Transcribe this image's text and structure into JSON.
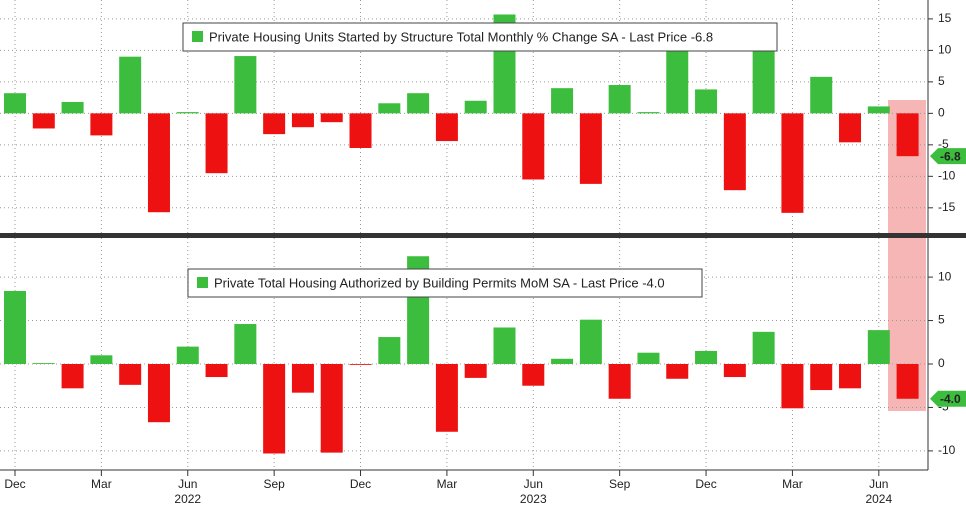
{
  "chart_data": [
    {
      "type": "bar",
      "title": "Private Housing Units Started by Structure Total Monthly % Change SA - Last Price -6.8",
      "values": [
        3.2,
        -2.4,
        1.8,
        -3.5,
        9.0,
        -15.7,
        0.2,
        -9.5,
        9.1,
        -3.3,
        -2.2,
        -1.4,
        -5.5,
        1.6,
        3.2,
        -4.4,
        2.0,
        15.7,
        -10.5,
        4.0,
        -11.2,
        4.5,
        0.2,
        10.0,
        3.8,
        -12.2,
        12.3,
        -15.8,
        5.8,
        -4.6,
        1.1,
        -6.8
      ],
      "last_label": "-6.8",
      "positive_color": "#3dbd3d",
      "negative_color": "#ee1111",
      "ylim": [
        -19,
        18
      ],
      "yticks": [
        15,
        10,
        5,
        0,
        -5,
        -10,
        -15
      ],
      "grid": true
    },
    {
      "type": "bar",
      "title": "Private Total Housing Authorized by Building Permits MoM SA - Last Price -4.0",
      "categories": [
        "Dec",
        null,
        null,
        "Mar",
        null,
        null,
        "Jun",
        null,
        null,
        "Sep",
        null,
        null,
        "Dec",
        null,
        null,
        "Mar",
        null,
        null,
        "Jun",
        null,
        null,
        "Sep",
        null,
        null,
        "Dec",
        null,
        null,
        "Mar",
        null,
        null,
        "Jun",
        null
      ],
      "years": [
        "2022",
        "2023",
        "2024"
      ],
      "values": [
        8.4,
        0.1,
        -2.8,
        1.0,
        -2.4,
        -6.7,
        2.0,
        -1.5,
        4.6,
        -10.3,
        -3.3,
        -10.2,
        -0.1,
        3.1,
        12.4,
        -7.8,
        -1.6,
        4.2,
        -2.5,
        0.6,
        5.1,
        -4.0,
        1.3,
        -1.7,
        1.5,
        -1.5,
        3.7,
        -5.1,
        -3.0,
        -2.8,
        3.9,
        -4.0
      ],
      "last_label": "-4.0",
      "positive_color": "#3dbd3d",
      "negative_color": "#ee1111",
      "ylim": [
        -12.2,
        14.5
      ],
      "yticks": [
        10,
        5,
        0,
        -5,
        -10
      ],
      "grid": true
    }
  ]
}
